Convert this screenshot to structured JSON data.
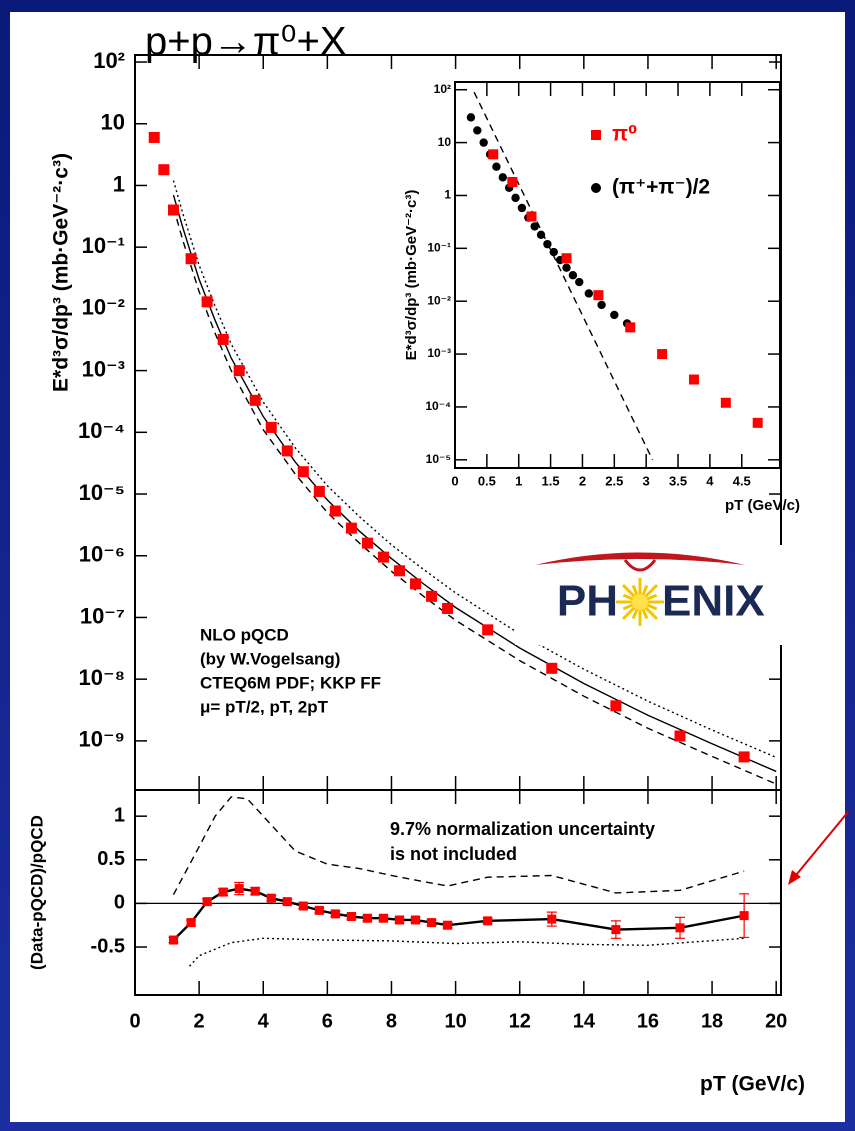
{
  "chart_data": [
    {
      "type": "scatter",
      "title": "p+p→π⁰+X",
      "ylabel": "E*d³σ/dp³ (mb·GeV⁻²·c³)",
      "yscale": "log",
      "xlim": [
        0,
        20.15
      ],
      "ylim": [
        1.6e-10,
        130
      ],
      "yticks": [
        {
          "value": 100,
          "label": "10²"
        },
        10,
        1,
        {
          "value": 0.1,
          "label": "10⁻¹"
        },
        {
          "value": 0.01,
          "label": "10⁻²"
        },
        {
          "value": 0.001,
          "label": "10⁻³"
        },
        {
          "value": 0.0001,
          "label": "10⁻⁴"
        },
        {
          "value": 1e-05,
          "label": "10⁻⁵"
        },
        {
          "value": 1e-06,
          "label": "10⁻⁶"
        },
        {
          "value": 1e-07,
          "label": "10⁻⁷"
        },
        {
          "value": 1e-08,
          "label": "10⁻⁸"
        },
        {
          "value": 1e-09,
          "label": "10⁻⁹"
        }
      ],
      "annotations": [
        "NLO pQCD",
        "(by W.Vogelsang)",
        "CTEQ6M PDF; KKP FF",
        "μ= pT/2, pT, 2pT"
      ],
      "logo": [
        "PH",
        "ENIX"
      ],
      "series": [
        {
          "color": "#000000",
          "line": "dotted",
          "x": [
            1.2,
            1.5,
            2,
            2.5,
            3,
            4,
            5,
            6,
            7,
            8,
            9,
            10,
            12,
            14,
            16,
            18,
            20
          ],
          "values": [
            1.2,
            0.34,
            0.051,
            0.011,
            0.0027,
            0.00031,
            5.6e-05,
            1.36e-05,
            4.3e-06,
            1.5e-06,
            6e-07,
            2.5e-07,
            5.4e-08,
            1.45e-08,
            4.4e-09,
            1.5e-09,
            5.4e-10
          ]
        },
        {
          "color": "#000000",
          "line": "solid",
          "x": [
            1.2,
            1.5,
            2,
            2.5,
            3,
            4,
            5,
            6,
            7,
            8,
            9,
            10,
            12,
            14,
            16,
            18,
            20
          ],
          "values": [
            0.7,
            0.2,
            0.03,
            0.0065,
            0.0016,
            0.00018,
            3.3e-05,
            8e-06,
            2.5e-06,
            9e-07,
            3.5e-07,
            1.45e-07,
            3.2e-08,
            8.5e-09,
            2.6e-09,
            9e-10,
            3.2e-10
          ]
        },
        {
          "color": "#000000",
          "line": "dashed",
          "x": [
            1.2,
            1.5,
            2,
            2.5,
            3,
            4,
            5,
            6,
            7,
            8,
            9,
            10,
            12,
            14,
            16,
            18,
            20
          ],
          "values": [
            0.44,
            0.125,
            0.019,
            0.004,
            0.001,
            0.00011,
            2.1e-05,
            5e-06,
            1.6e-06,
            5.6e-07,
            2.2e-07,
            9e-08,
            2e-08,
            5.3e-09,
            1.6e-09,
            5.6e-10,
            2e-10
          ]
        },
        {
          "color": "#ff0000",
          "marker": "square",
          "x": [
            0.6,
            0.9,
            1.2,
            1.75,
            2.25,
            2.75,
            3.25,
            3.75,
            4.25,
            4.75,
            5.25,
            5.75,
            6.25,
            6.75,
            7.25,
            7.75,
            8.25,
            8.75,
            9.25,
            9.75,
            11,
            13,
            15,
            17,
            19
          ],
          "values": [
            6,
            1.8,
            0.4,
            0.065,
            0.013,
            0.0032,
            0.001,
            0.00033,
            0.00012,
            5e-05,
            2.3e-05,
            1.1e-05,
            5.3e-06,
            2.8e-06,
            1.6e-06,
            9.5e-07,
            5.7e-07,
            3.5e-07,
            2.2e-07,
            1.4e-07,
            6.3e-08,
            1.5e-08,
            3.7e-09,
            1.2e-09,
            5.5e-10
          ]
        }
      ]
    },
    {
      "type": "scatter",
      "xlabel": "pT (GeV/c)",
      "ylabel": "(Data-pQCD)/pQCD",
      "xlim": [
        0,
        20.15
      ],
      "ylim": [
        -1.05,
        1.3
      ],
      "xticks": [
        0,
        2,
        4,
        6,
        8,
        10,
        12,
        14,
        16,
        18,
        20
      ],
      "yticks": [
        -0.5,
        0,
        0.5,
        1
      ],
      "reference_line": 0,
      "annotations": [
        "9.7% normalization uncertainty",
        "is not included"
      ],
      "series": [
        {
          "color": "#000000",
          "line": "dashed",
          "x": [
            1.2,
            2,
            2.5,
            3,
            3.5,
            4,
            5,
            6,
            7,
            8,
            9,
            9.75,
            11,
            13,
            15,
            17,
            19
          ],
          "values": [
            0.1,
            0.65,
            1.0,
            1.22,
            1.2,
            1.0,
            0.6,
            0.45,
            0.4,
            0.32,
            0.25,
            0.2,
            0.3,
            0.32,
            0.12,
            0.15,
            0.37
          ]
        },
        {
          "color": "#000000",
          "line": "dotted",
          "x": [
            1.7,
            2,
            3,
            4,
            6,
            8,
            10,
            12,
            14,
            16,
            19
          ],
          "values": [
            -0.72,
            -0.6,
            -0.45,
            -0.4,
            -0.42,
            -0.43,
            -0.46,
            -0.44,
            -0.47,
            -0.48,
            -0.4
          ]
        },
        {
          "color": "#ff0000",
          "marker": "square",
          "connect": "#000000",
          "x": [
            1.2,
            1.75,
            2.25,
            2.75,
            3.25,
            3.75,
            4.25,
            4.75,
            5.25,
            5.75,
            6.25,
            6.75,
            7.25,
            7.75,
            8.25,
            8.75,
            9.25,
            9.75,
            11,
            13,
            15,
            17,
            19
          ],
          "values": [
            -0.42,
            -0.22,
            0.02,
            0.13,
            0.17,
            0.14,
            0.06,
            0.02,
            -0.03,
            -0.08,
            -0.12,
            -0.15,
            -0.17,
            -0.17,
            -0.19,
            -0.19,
            -0.22,
            -0.25,
            -0.2,
            -0.18,
            -0.3,
            -0.28,
            -0.14
          ],
          "errors": [
            0.03,
            0.03,
            0.03,
            0.04,
            0.07,
            0.04,
            0.03,
            0.03,
            0.03,
            0.03,
            0.03,
            0.03,
            0.03,
            0.03,
            0.03,
            0.03,
            0.03,
            0.03,
            0.03,
            0.08,
            0.1,
            0.12,
            0.25
          ]
        }
      ]
    },
    {
      "type": "scatter",
      "xlabel": "pT (GeV/c)",
      "ylabel": "E*d³σ/dp³ (mb·GeV⁻²·c³)",
      "yscale": "log",
      "xlim": [
        0,
        5.1
      ],
      "ylim": [
        7e-06,
        140
      ],
      "xticks": [
        0,
        0.5,
        1,
        1.5,
        2,
        2.5,
        3,
        3.5,
        4,
        4.5
      ],
      "yticks": [
        {
          "value": 100,
          "label": "10²"
        },
        10,
        1,
        {
          "value": 0.1,
          "label": "10⁻¹"
        },
        {
          "value": 0.01,
          "label": "10⁻²"
        },
        {
          "value": 0.001,
          "label": "10⁻³"
        },
        {
          "value": 0.0001,
          "label": "10⁻⁴"
        },
        {
          "value": 1e-05,
          "label": "10⁻⁵"
        }
      ],
      "series": [
        {
          "color": "#000000",
          "line": "dashed",
          "x": [
            0.3,
            3.1
          ],
          "values": [
            90,
            1e-05
          ]
        },
        {
          "name": "(π⁺+π⁻)/2",
          "color": "#000000",
          "marker": "circle",
          "x": [
            0.25,
            0.35,
            0.45,
            0.55,
            0.65,
            0.75,
            0.85,
            0.95,
            1.05,
            1.15,
            1.25,
            1.35,
            1.45,
            1.55,
            1.65,
            1.75,
            1.85,
            1.95,
            2.1,
            2.3,
            2.5,
            2.7
          ],
          "values": [
            30,
            17,
            10,
            6,
            3.5,
            2.2,
            1.4,
            0.9,
            0.58,
            0.38,
            0.26,
            0.18,
            0.12,
            0.085,
            0.06,
            0.043,
            0.031,
            0.023,
            0.014,
            0.0085,
            0.0055,
            0.0038
          ]
        },
        {
          "name": "π⁰",
          "color": "#ff0000",
          "marker": "square",
          "x": [
            0.6,
            0.9,
            1.2,
            1.75,
            2.25,
            2.75,
            3.25,
            3.75,
            4.25,
            4.75
          ],
          "values": [
            6,
            1.8,
            0.4,
            0.065,
            0.013,
            0.0032,
            0.001,
            0.00033,
            0.00012,
            5e-05
          ]
        }
      ]
    }
  ]
}
